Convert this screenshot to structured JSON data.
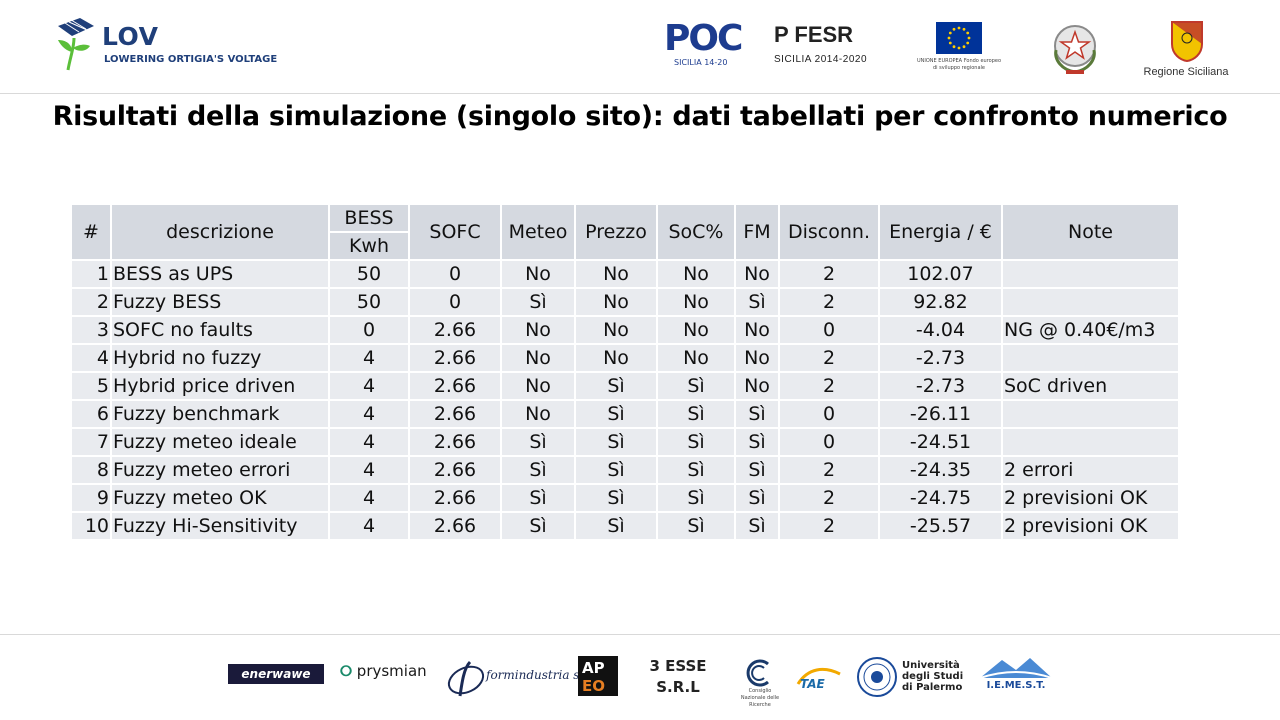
{
  "header": {
    "lov": {
      "name": "LOV",
      "subtitle": "LOWERING ORTIGIA'S VOLTAGE"
    },
    "poc": {
      "name": "POC",
      "subtitle": "SICILIA 14-20"
    },
    "fesr": {
      "name": "P FESR",
      "subtitle": "SICILIA 2014-2020"
    },
    "eu": {
      "subtitle": "UNIONE EUROPEA Fondo europeo di sviluppo regionale"
    },
    "regione": {
      "subtitle": "Regione Siciliana"
    }
  },
  "title": "Risultati della simulazione (singolo sito): dati tabellati per confronto numerico",
  "table": {
    "headers": {
      "num": "#",
      "descrizione": "descrizione",
      "bess_top": "BESS",
      "bess_unit": "Kwh",
      "sofc": "SOFC",
      "meteo": "Meteo",
      "prezzo": "Prezzo",
      "soc": "SoC%",
      "fm": "FM",
      "disconn": "Disconn.",
      "energia": "Energia / €",
      "note": "Note"
    },
    "rows": [
      {
        "num": "1",
        "desc": "BESS as UPS",
        "bess": "50",
        "sofc": "0",
        "meteo": "No",
        "prezzo": "No",
        "soc": "No",
        "fm": "No",
        "disconn": "2",
        "energia": "102.07",
        "note": ""
      },
      {
        "num": "2",
        "desc": "Fuzzy BESS",
        "bess": "50",
        "sofc": "0",
        "meteo": "Sì",
        "prezzo": "No",
        "soc": "No",
        "fm": "Sì",
        "disconn": "2",
        "energia": "92.82",
        "note": ""
      },
      {
        "num": "3",
        "desc": "SOFC no faults",
        "bess": "0",
        "sofc": "2.66",
        "meteo": "No",
        "prezzo": "No",
        "soc": "No",
        "fm": "No",
        "disconn": "0",
        "energia": "-4.04",
        "note": "NG @ 0.40€/m3"
      },
      {
        "num": "4",
        "desc": "Hybrid no fuzzy",
        "bess": "4",
        "sofc": "2.66",
        "meteo": "No",
        "prezzo": "No",
        "soc": "No",
        "fm": "No",
        "disconn": "2",
        "energia": "-2.73",
        "note": ""
      },
      {
        "num": "5",
        "desc": "Hybrid price driven",
        "bess": "4",
        "sofc": "2.66",
        "meteo": "No",
        "prezzo": "Sì",
        "soc": "Sì",
        "fm": "No",
        "disconn": "2",
        "energia": "-2.73",
        "note": "SoC driven"
      },
      {
        "num": "6",
        "desc": "Fuzzy benchmark",
        "bess": "4",
        "sofc": "2.66",
        "meteo": "No",
        "prezzo": "Sì",
        "soc": "Sì",
        "fm": "Sì",
        "disconn": "0",
        "energia": "-26.11",
        "note": ""
      },
      {
        "num": "7",
        "desc": "Fuzzy meteo ideale",
        "bess": "4",
        "sofc": "2.66",
        "meteo": "Sì",
        "prezzo": "Sì",
        "soc": "Sì",
        "fm": "Sì",
        "disconn": "0",
        "energia": "-24.51",
        "note": ""
      },
      {
        "num": "8",
        "desc": "Fuzzy meteo errori",
        "bess": "4",
        "sofc": "2.66",
        "meteo": "Sì",
        "prezzo": "Sì",
        "soc": "Sì",
        "fm": "Sì",
        "disconn": "2",
        "energia": "-24.35",
        "note": "2 errori"
      },
      {
        "num": "9",
        "desc": "Fuzzy meteo OK",
        "bess": "4",
        "sofc": "2.66",
        "meteo": "Sì",
        "prezzo": "Sì",
        "soc": "Sì",
        "fm": "Sì",
        "disconn": "2",
        "energia": "-24.75",
        "note": "2 previsioni OK"
      },
      {
        "num": "10",
        "desc": "Fuzzy Hi-Sensitivity",
        "bess": "4",
        "sofc": "2.66",
        "meteo": "Sì",
        "prezzo": "Sì",
        "soc": "Sì",
        "fm": "Sì",
        "disconn": "2",
        "energia": "-25.57",
        "note": "2 previsioni OK"
      }
    ]
  },
  "footer": {
    "enerwawe": "enerwawe",
    "prysmian": "prysmian",
    "formindustria": "formindustria s.r.l.",
    "tresse_line1": "3 ESSE",
    "tresse_line2": "S.R.L",
    "cnr_sub": "Consiglio Nazionale delle Ricerche",
    "unipa_line1": "Università",
    "unipa_line2": "degli Studi",
    "unipa_line3": "di Palermo",
    "iemest": "I.E.ME.S.T."
  },
  "colors": {
    "lov_blue": "#1f3f7a",
    "lov_green": "#5bbf3a",
    "header_cell": "#d5d9e0",
    "body_cell": "#e9ebef",
    "eu_blue": "#003399"
  }
}
